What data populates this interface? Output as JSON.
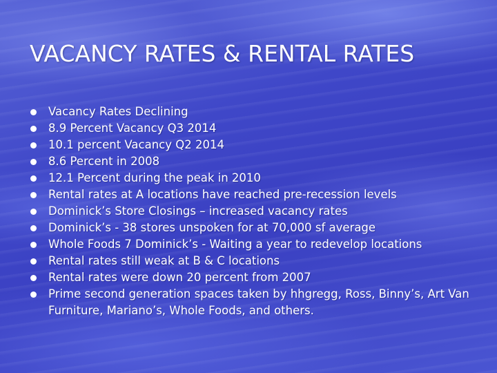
{
  "slide": {
    "title": "VACANCY RATES & RENTAL RATES",
    "bullets": [
      "Vacancy Rates Declining",
      "8.9  Percent Vacancy Q3 2014",
      "10.1 percent Vacancy Q2 2014",
      "8.6 Percent in 2008",
      "12.1 Percent during the peak in 2010",
      "Rental rates at A locations have reached pre-recession levels",
      "Dominick’s Store Closings – increased vacancy rates",
      "Dominick’s - 38 stores unspoken for at  70,000 sf average",
      "Whole Foods 7 Dominick’s - Waiting a year to redevelop locations",
      "Rental rates still weak at B & C locations",
      "Rental rates were down 20 percent from 2007",
      "Prime second generation spaces taken by hhgregg, Ross, Binny’s, Art Van Furniture, Mariano’s, Whole Foods, and others."
    ]
  }
}
